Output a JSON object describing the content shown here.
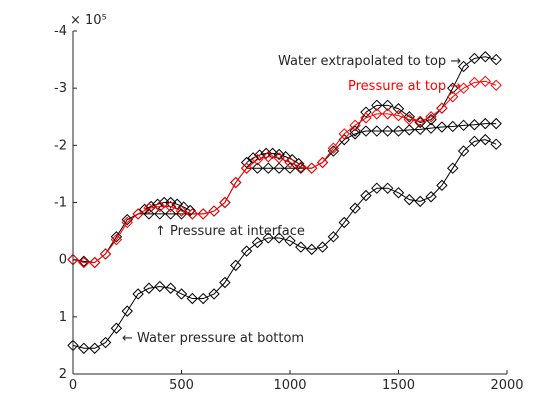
{
  "chart_data": {
    "type": "line",
    "title": "",
    "xlabel": "",
    "ylabel": "",
    "xlim": [
      0,
      2000
    ],
    "ylim": [
      -400000,
      200000
    ],
    "y_direction": "reversed",
    "y_exponent_label": "× 10⁵",
    "y_tick_values": [
      -400000,
      -300000,
      -200000,
      -100000,
      0,
      100000,
      200000
    ],
    "y_tick_labels": [
      "-4",
      "-3",
      "-2",
      "-1",
      "0",
      "1",
      "2"
    ],
    "x_tick_values": [
      0,
      500,
      1000,
      1500,
      2000
    ],
    "x_tick_labels": [
      "0",
      "500",
      "1000",
      "1500",
      "2000"
    ],
    "grid": false,
    "marker": "diamond",
    "annotations": {
      "water_top": "Water extrapolated to top →",
      "pressure_top": "Pressure at top →",
      "interface": "↑ Pressure at interface",
      "bottom": "← Water pressure at bottom"
    },
    "colors": {
      "black_series": "#000000",
      "red_series": "#ff0000"
    },
    "series": [
      {
        "key": "interface",
        "color": "#000000",
        "x": [
          0,
          50,
          100,
          150,
          200,
          250,
          300,
          350,
          400,
          450,
          500,
          550,
          600,
          650,
          700,
          750,
          800,
          850,
          900,
          950,
          1000,
          1050,
          1100,
          1150,
          1200,
          1250,
          1300,
          1350,
          1400,
          1450,
          1500,
          1550,
          1600,
          1650,
          1700,
          1750,
          1800,
          1850,
          1900,
          1950
        ],
        "y": [
          0,
          3000,
          5000,
          -10000,
          -40000,
          -70000,
          -80000,
          -80000,
          -80000,
          -80000,
          -80000,
          -80000,
          -80000,
          -85000,
          -100000,
          -135000,
          -160000,
          -160000,
          -160000,
          -160000,
          -160000,
          -160000,
          -160000,
          -170000,
          -190000,
          -210000,
          -220000,
          -225000,
          -225000,
          -225000,
          -225000,
          -227000,
          -228000,
          -230000,
          -232000,
          -233000,
          -235000,
          -236000,
          -238000,
          -238000
        ]
      },
      {
        "key": "bump_500",
        "color": "#000000",
        "x": [
          330,
          360,
          390,
          420,
          450,
          480,
          510,
          540
        ],
        "y": [
          -88000,
          -93000,
          -97000,
          -100000,
          -100000,
          -97000,
          -92000,
          -86000
        ]
      },
      {
        "key": "bump_1000",
        "color": "#000000",
        "x": [
          800,
          830,
          860,
          890,
          920,
          950,
          980,
          1010,
          1040
        ],
        "y": [
          -170000,
          -178000,
          -183000,
          -186000,
          -186000,
          -184000,
          -180000,
          -175000,
          -168000
        ]
      },
      {
        "key": "water_top",
        "color": "#000000",
        "x": [
          1300,
          1350,
          1400,
          1450,
          1500,
          1550,
          1600,
          1650,
          1700,
          1750,
          1800,
          1850,
          1900,
          1950
        ],
        "y": [
          -225000,
          -258000,
          -270000,
          -270000,
          -264000,
          -250000,
          -240000,
          -245000,
          -265000,
          -300000,
          -338000,
          -352000,
          -355000,
          -350000
        ]
      },
      {
        "key": "pressure_top",
        "color": "#ff0000",
        "x": [
          0,
          50,
          100,
          150,
          200,
          250,
          300,
          350,
          400,
          450,
          500,
          550,
          600,
          650,
          700,
          750,
          800,
          850,
          900,
          950,
          1000,
          1050,
          1100,
          1150,
          1200,
          1250,
          1300,
          1350,
          1400,
          1450,
          1500,
          1550,
          1600,
          1650,
          1700,
          1750,
          1800,
          1850,
          1900,
          1950
        ],
        "y": [
          0,
          5000,
          5000,
          -10000,
          -35000,
          -65000,
          -80000,
          -90000,
          -93000,
          -93000,
          -85000,
          -80000,
          -80000,
          -85000,
          -100000,
          -135000,
          -160000,
          -175000,
          -180000,
          -178000,
          -170000,
          -162000,
          -160000,
          -170000,
          -195000,
          -220000,
          -235000,
          -248000,
          -255000,
          -255000,
          -252000,
          -245000,
          -242000,
          -250000,
          -265000,
          -285000,
          -300000,
          -310000,
          -312000,
          -305000
        ]
      },
      {
        "key": "bottom",
        "color": "#000000",
        "x": [
          0,
          50,
          100,
          150,
          200,
          250,
          300,
          350,
          400,
          450,
          500,
          550,
          600,
          650,
          700,
          750,
          800,
          850,
          900,
          950,
          1000,
          1050,
          1100,
          1150,
          1200,
          1250,
          1300,
          1350,
          1400,
          1450,
          1500,
          1550,
          1600,
          1650,
          1700,
          1750,
          1800,
          1850,
          1900,
          1950
        ],
        "y": [
          150000,
          155000,
          155000,
          145000,
          120000,
          90000,
          60000,
          50000,
          47000,
          50000,
          60000,
          68000,
          68000,
          60000,
          40000,
          10000,
          -15000,
          -30000,
          -38000,
          -38000,
          -33000,
          -22000,
          -18000,
          -22000,
          -40000,
          -65000,
          -90000,
          -112000,
          -125000,
          -125000,
          -117000,
          -105000,
          -102000,
          -110000,
          -130000,
          -160000,
          -190000,
          -207000,
          -210000,
          -202000
        ]
      }
    ]
  }
}
